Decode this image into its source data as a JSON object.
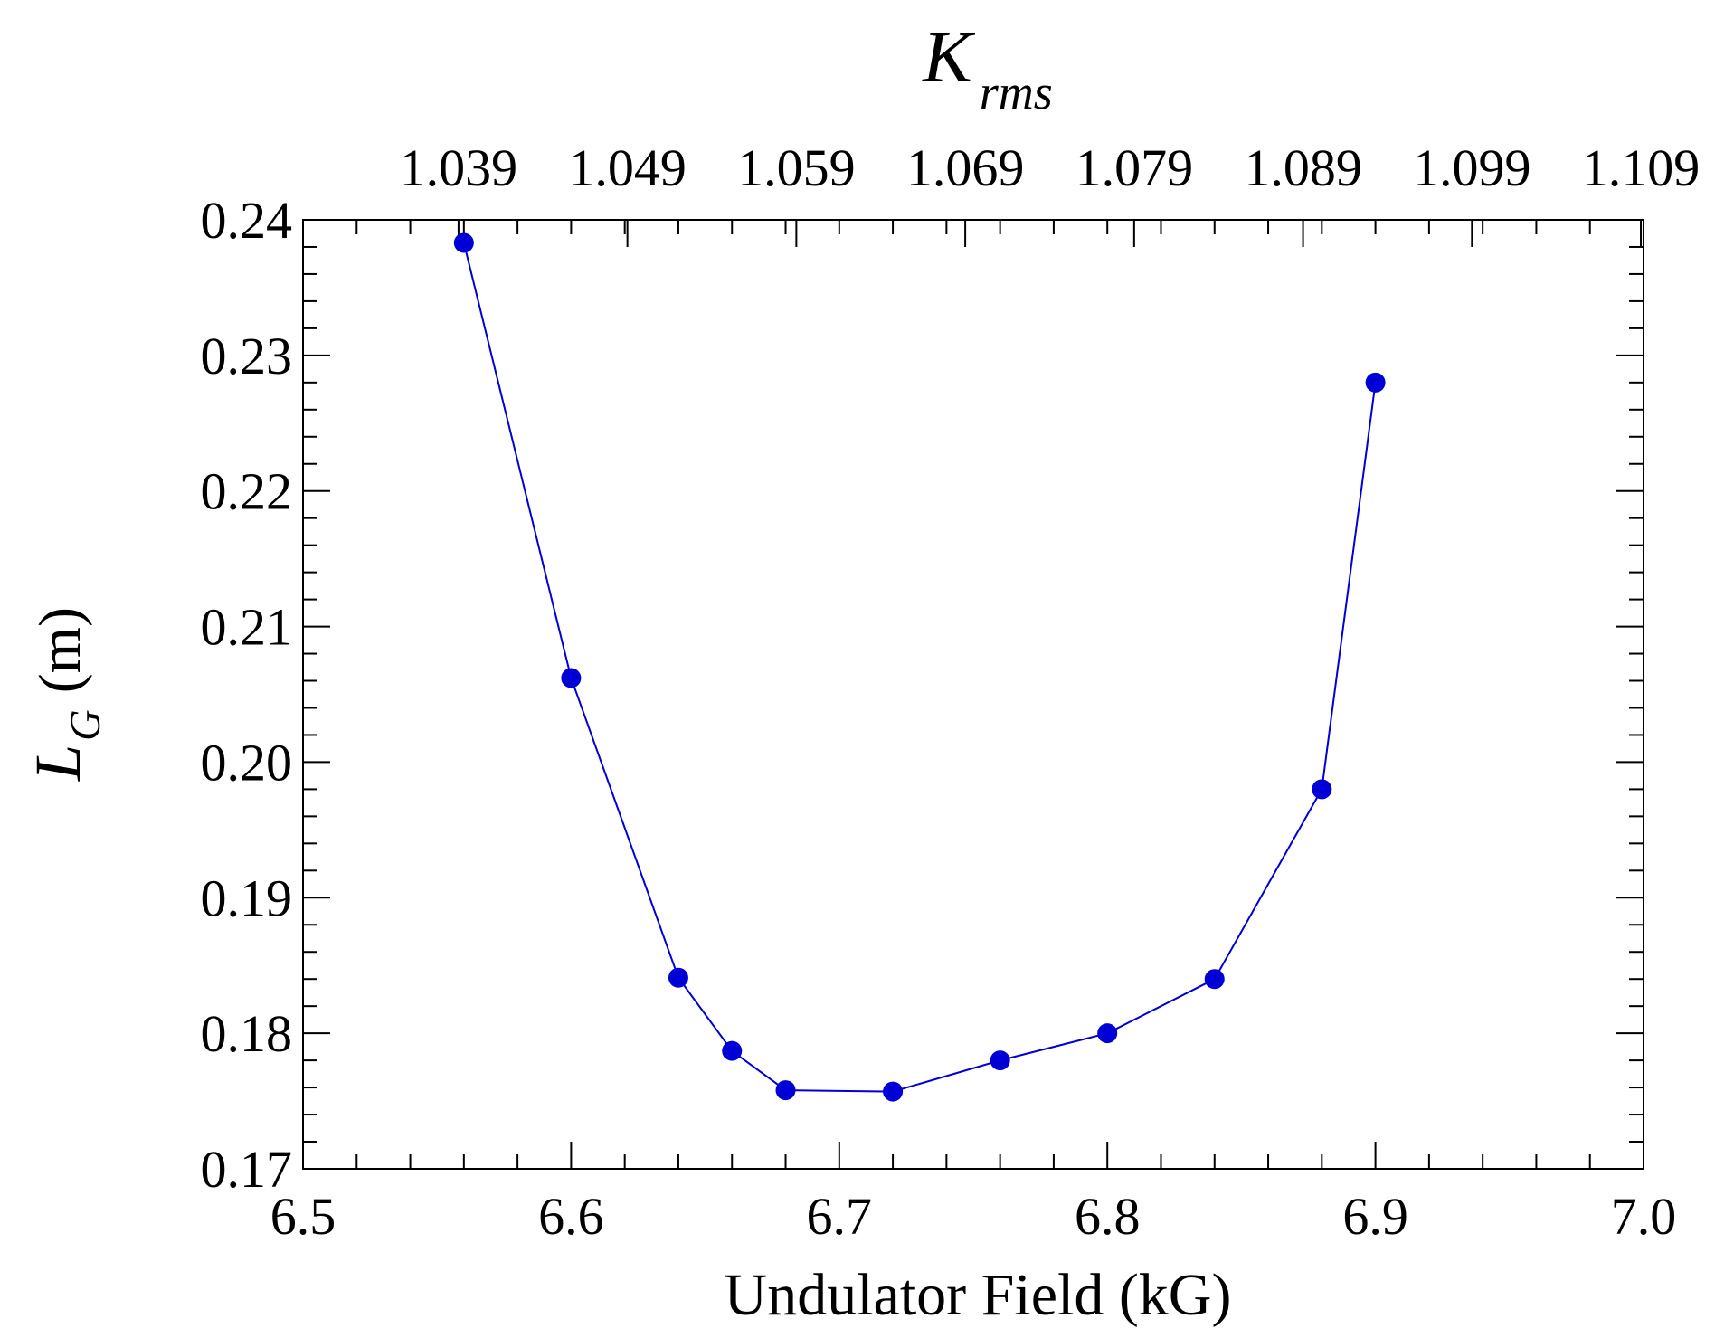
{
  "chart_data": {
    "type": "line",
    "title": "",
    "xlabel": "Undulator Field (kG)",
    "ylabel": {
      "symbol": "L",
      "subscript": "G",
      "unit": "(m)"
    },
    "top_axis": {
      "symbol": "K",
      "subscript": "rms"
    },
    "xlim": [
      6.5,
      7.0
    ],
    "ylim": [
      0.17,
      0.24
    ],
    "x_ticks": [
      "6.5",
      "6.6",
      "6.7",
      "6.8",
      "6.9",
      "7.0"
    ],
    "y_ticks": [
      "0.17",
      "0.18",
      "0.19",
      "0.20",
      "0.21",
      "0.22",
      "0.23",
      "0.24"
    ],
    "top_ticks": [
      "1.039",
      "1.049",
      "1.059",
      "1.069",
      "1.079",
      "1.089",
      "1.099",
      "1.109"
    ],
    "top_ticks_x": [
      6.558,
      6.621,
      6.684,
      6.747,
      6.81,
      6.873,
      6.936,
      6.999
    ],
    "grid": false,
    "series": [
      {
        "name": "L_G",
        "color": "#0000d6",
        "x": [
          6.56,
          6.6,
          6.64,
          6.66,
          6.68,
          6.72,
          6.76,
          6.8,
          6.84,
          6.88,
          6.9
        ],
        "values": [
          0.2383,
          0.2062,
          0.1841,
          0.1787,
          0.1758,
          0.1757,
          0.178,
          0.18,
          0.184,
          0.198,
          0.228
        ]
      }
    ]
  }
}
